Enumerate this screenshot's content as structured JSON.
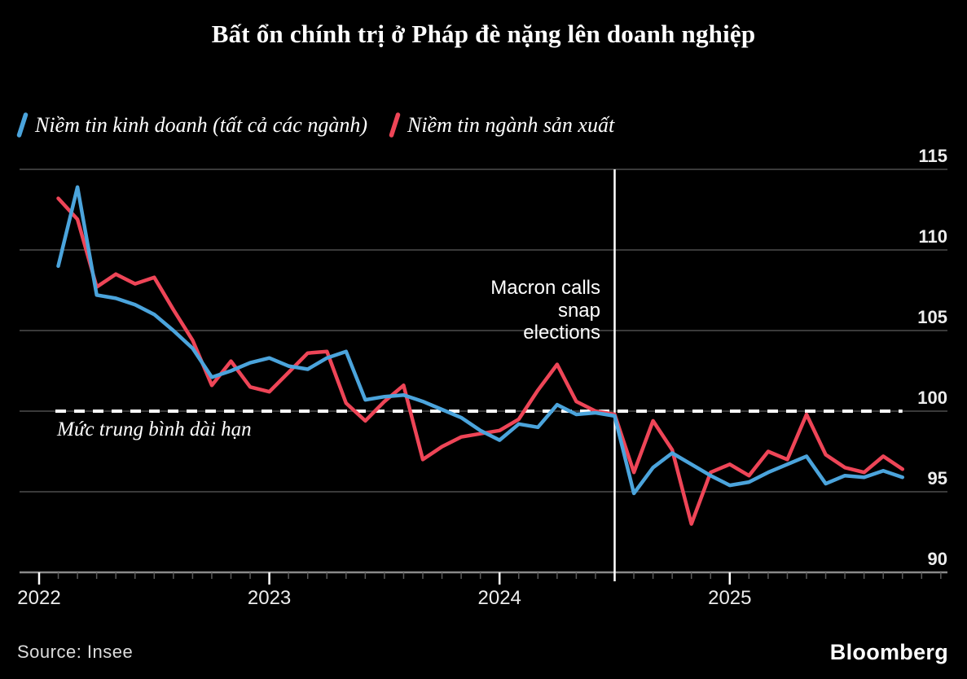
{
  "title": "Bất ổn chính trị ở Pháp đè nặng lên doanh nghiệp",
  "annotations": {
    "average_line_label": "Mức trung bình dài hạn",
    "event_lines": [
      "Macron calls",
      "snap",
      "elections"
    ]
  },
  "source": "Source: Insee",
  "brand": "Bloomberg",
  "colors": {
    "background": "#000000",
    "gridline": "#3a3a3a",
    "axis": "#8a8a8a",
    "minor_tick": "#5a5a5a",
    "major_tick": "#ffffff",
    "dashed_average": "#ffffff",
    "event_line": "#ffffff",
    "tick_label": "#ededed"
  },
  "chart_data": {
    "type": "line",
    "title": "Bất ổn chính trị ở Pháp đè nặng lên doanh nghiệp",
    "xlabel": "",
    "ylabel": "",
    "ylim": [
      90,
      115
    ],
    "yticks": [
      115,
      110,
      105,
      100,
      95,
      90
    ],
    "year_ticks": [
      "2022",
      "2023",
      "2024",
      "2025"
    ],
    "grid": true,
    "legend_position": "top-left",
    "average_line_y": 100,
    "event_line_x": "2024-06",
    "x": [
      "2022-01",
      "2022-02",
      "2022-03",
      "2022-04",
      "2022-05",
      "2022-06",
      "2022-07",
      "2022-08",
      "2022-09",
      "2022-10",
      "2022-11",
      "2022-12",
      "2023-01",
      "2023-02",
      "2023-03",
      "2023-04",
      "2023-05",
      "2023-06",
      "2023-07",
      "2023-08",
      "2023-09",
      "2023-10",
      "2023-11",
      "2023-12",
      "2024-01",
      "2024-02",
      "2024-03",
      "2024-04",
      "2024-05",
      "2024-06",
      "2024-07",
      "2024-08",
      "2024-09",
      "2024-10",
      "2024-11",
      "2024-12",
      "2025-01",
      "2025-02",
      "2025-03",
      "2025-04",
      "2025-05",
      "2025-06",
      "2025-07",
      "2025-08",
      "2025-09"
    ],
    "series": [
      {
        "name": "Niềm tin kinh doanh (tất cả các ngành)",
        "color": "#4ba4dc",
        "values": [
          109.0,
          113.9,
          107.2,
          107.0,
          106.6,
          106.0,
          105.0,
          103.9,
          102.1,
          102.5,
          103.0,
          103.3,
          102.8,
          102.6,
          103.3,
          103.7,
          100.7,
          100.9,
          101.0,
          100.6,
          100.1,
          99.6,
          98.8,
          98.2,
          99.2,
          99.0,
          100.4,
          99.8,
          99.9,
          99.7,
          94.9,
          96.5,
          97.4,
          96.7,
          96.0,
          95.4,
          95.6,
          96.2,
          96.7,
          97.2,
          95.5,
          96.0,
          95.9,
          96.3,
          95.9
        ]
      },
      {
        "name": "Niềm tin ngành sản xuất",
        "color": "#ee4557",
        "values": [
          113.2,
          111.9,
          107.7,
          108.5,
          107.9,
          108.3,
          106.3,
          104.4,
          101.6,
          103.1,
          101.5,
          101.2,
          102.4,
          103.6,
          103.7,
          100.5,
          99.4,
          100.6,
          101.6,
          97.0,
          97.8,
          98.4,
          98.6,
          98.8,
          99.5,
          101.3,
          102.9,
          100.6,
          100.0,
          99.8,
          96.2,
          99.4,
          97.6,
          93.0,
          96.2,
          96.7,
          96.0,
          97.5,
          97.0,
          99.8,
          97.3,
          96.5,
          96.2,
          97.2,
          96.4
        ]
      }
    ]
  }
}
